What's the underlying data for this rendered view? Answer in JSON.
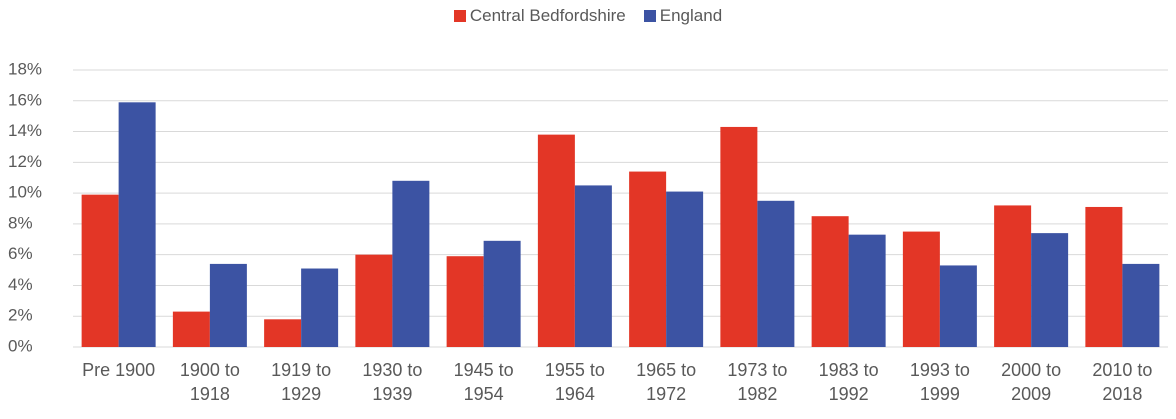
{
  "chart_data": {
    "type": "bar",
    "categories": [
      "Pre 1900",
      "1900 to 1918",
      "1919 to 1929",
      "1930 to 1939",
      "1945 to 1954",
      "1955 to 1964",
      "1965 to 1972",
      "1973 to 1982",
      "1983 to 1992",
      "1993 to 1999",
      "2000 to 2009",
      "2010 to 2018"
    ],
    "series": [
      {
        "name": "Central Bedfordshire",
        "color": "#e33626",
        "values": [
          9.9,
          2.3,
          1.8,
          6.0,
          5.9,
          13.8,
          11.4,
          14.3,
          8.5,
          7.5,
          9.2,
          9.1
        ]
      },
      {
        "name": "England",
        "color": "#3c53a3",
        "values": [
          15.9,
          5.4,
          5.1,
          10.8,
          6.9,
          10.5,
          10.1,
          9.5,
          7.3,
          5.3,
          7.4,
          5.4
        ]
      }
    ],
    "ylim": [
      0,
      18
    ],
    "yticks": [
      {
        "value": 0,
        "label": "0%"
      },
      {
        "value": 2,
        "label": "2%"
      },
      {
        "value": 4,
        "label": "4%"
      },
      {
        "value": 6,
        "label": "6%"
      },
      {
        "value": 8,
        "label": "8%"
      },
      {
        "value": 10,
        "label": "10%"
      },
      {
        "value": 12,
        "label": "12%"
      },
      {
        "value": 14,
        "label": "14%"
      },
      {
        "value": 16,
        "label": "16%"
      },
      {
        "value": 18,
        "label": "18%"
      }
    ],
    "grid": true,
    "legend": "top"
  }
}
